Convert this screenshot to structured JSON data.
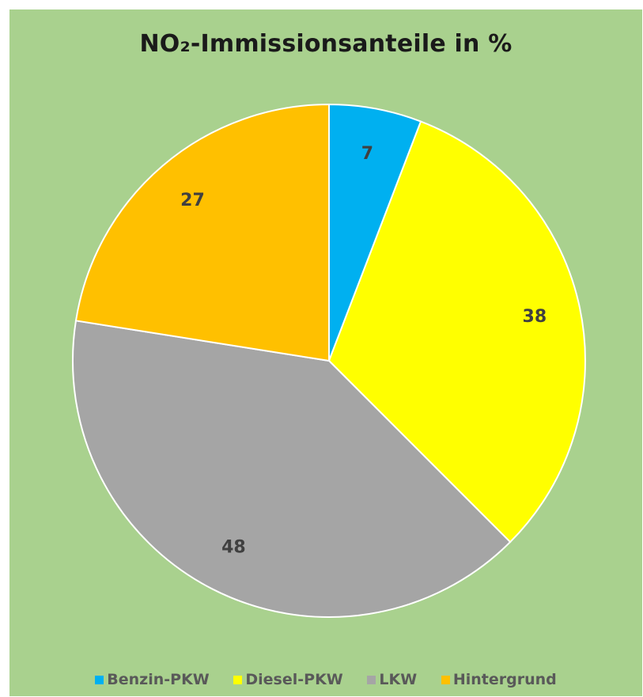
{
  "chart_data": {
    "type": "pie",
    "title": "NO₂-Immissionsanteile in %",
    "categories": [
      "Benzin-PKW",
      "Diesel-PKW",
      "LKW",
      "Hintergrund"
    ],
    "values": [
      7,
      38,
      48,
      27
    ],
    "colors": [
      "#00b0f0",
      "#ffff00",
      "#a5a5a5",
      "#ffc000"
    ],
    "data_labels": [
      "7",
      "38",
      "48",
      "27"
    ],
    "legend_position": "bottom",
    "background_color": "#a9d18e",
    "start_angle_deg": 0,
    "direction": "clockwise"
  }
}
